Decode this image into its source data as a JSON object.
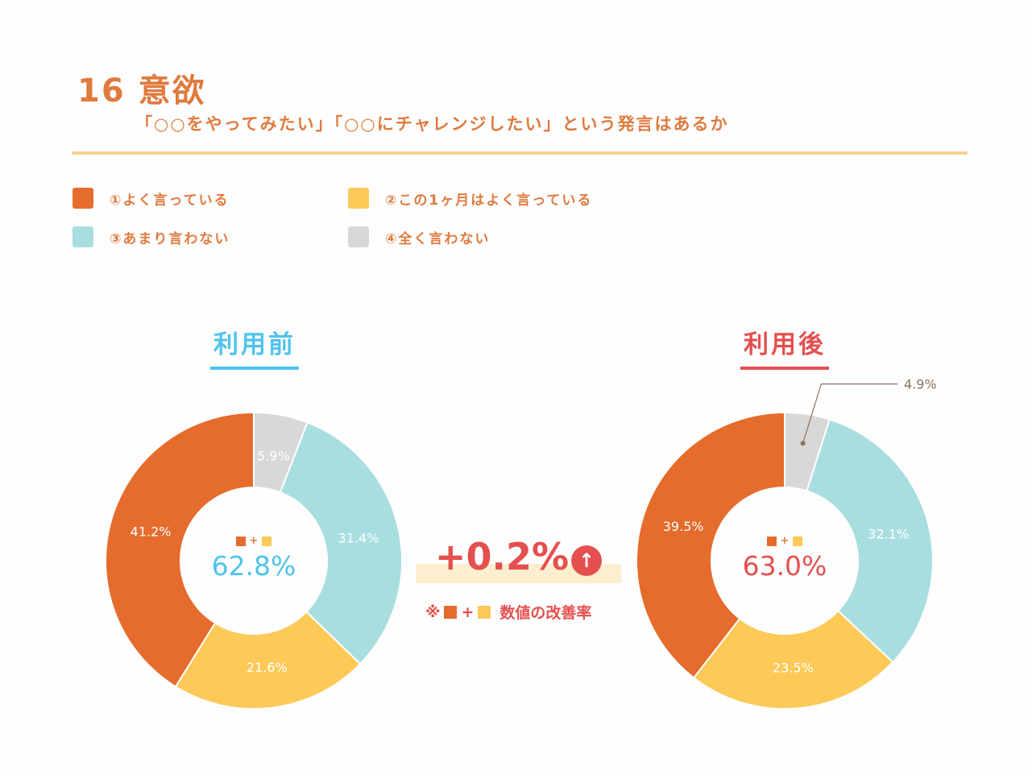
{
  "header": {
    "title": "16 意欲",
    "subtitle": "「○○をやってみたい」「○○にチャレンジしたい」という発言はあるか"
  },
  "legend": [
    {
      "label": "①よく言っている",
      "color": "#e56c2c"
    },
    {
      "label": "②この1ヶ月はよく言っている",
      "color": "#fdc957"
    },
    {
      "label": "③あまり言わない",
      "color": "#a8dee0"
    },
    {
      "label": "④全く言わない",
      "color": "#d8d8d8"
    }
  ],
  "comparison": {
    "improvement": "+0.2%",
    "arrow": "↑",
    "note_prefix": "※",
    "note_plus": "+",
    "note_text": "数値の改善率"
  },
  "chart_data": [
    {
      "type": "pie",
      "title": "利用前",
      "categories": [
        "①よく言っている",
        "②この1ヶ月はよく言っている",
        "③あまり言わない",
        "④全く言わない"
      ],
      "values": [
        41.2,
        21.6,
        31.4,
        5.9
      ],
      "labels": [
        "41.2%",
        "21.6%",
        "31.4%",
        "5.9%"
      ],
      "center_plus": "+",
      "center_sum": "62.8%",
      "accent_color": "#4fc3ec"
    },
    {
      "type": "pie",
      "title": "利用後",
      "categories": [
        "①よく言っている",
        "②この1ヶ月はよく言っている",
        "③あまり言わない",
        "④全く言わない"
      ],
      "values": [
        39.5,
        23.5,
        32.1,
        4.9
      ],
      "labels": [
        "39.5%",
        "23.5%",
        "32.1%",
        "4.9%"
      ],
      "center_plus": "+",
      "center_sum": "63.0%",
      "accent_color": "#e5504f"
    }
  ]
}
